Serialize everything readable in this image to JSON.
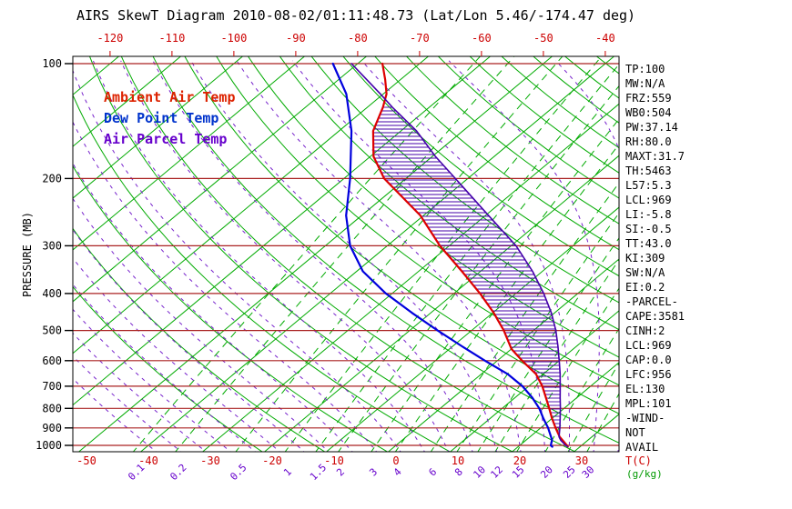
{
  "title": "AIRS SkewT Diagram 2010-08-02/01:11:48.73 (Lat/Lon 5.46/-174.47 deg)",
  "legend": {
    "items": [
      {
        "label": "Ambient Air Temp",
        "color": "#dd2200"
      },
      {
        "label": "Dew Point Temp",
        "color": "#0033cc"
      },
      {
        "label": "Air Parcel Temp",
        "color": "#6600cc"
      }
    ]
  },
  "stats": {
    "lines": [
      "TP:100",
      "MW:N/A",
      "FRZ:559",
      "WB0:504",
      "PW:37.14",
      "RH:80.0",
      "MAXT:31.7",
      "TH:5463",
      "L57:5.3",
      "LCL:969",
      "LI:-5.8",
      "SI:-0.5",
      "TT:43.0",
      "KI:309",
      "SW:N/A",
      "EI:0.2",
      "-PARCEL-",
      "CAPE:3581",
      "CINH:2",
      "LCL:969",
      "CAP:0.0",
      "LFC:956",
      "EL:130",
      "MPL:101",
      "-WIND-",
      "NOT",
      "AVAIL"
    ]
  },
  "axes": {
    "pressure_label": "PRESSURE (MB)",
    "pressure_ticks_mb": [
      100,
      200,
      300,
      400,
      500,
      600,
      700,
      800,
      900,
      1000
    ],
    "top_temp_ticks_c": [
      -120,
      -110,
      -100,
      -90,
      -80,
      -70,
      -60,
      -50,
      -40
    ],
    "bottom_temp_ticks_c": [
      -50,
      -40,
      -30,
      -20,
      -10,
      0,
      10,
      20,
      30
    ],
    "mixing_ratio_ticks_gkg": [
      0.1,
      0.2,
      0.5,
      1,
      1.5,
      2,
      3,
      4,
      6,
      8,
      10,
      12,
      15,
      20,
      25,
      30
    ],
    "temp_unit_label": "T(C)",
    "mixing_unit_label": "(g/kg)"
  },
  "colors": {
    "temp_labels": "#cc0000",
    "mixing_labels": "#6600cc",
    "mixing_unit": "#009900",
    "pressure_lines": "#aa2222",
    "axis": "#000000",
    "background": "#ffffff"
  },
  "chart_data": {
    "type": "line",
    "projection": "skew-t-log-p",
    "title": "AIRS SkewT Diagram 2010-08-02/01:11:48.73 (Lat/Lon 5.46/-174.47 deg)",
    "ylabel": "PRESSURE (MB)",
    "xlabel": "T(C)",
    "pressure_range_mb": [
      100,
      1050
    ],
    "temp_range_at_1000mb_c": [
      -50,
      36
    ],
    "grid_on": true,
    "legend_position": "top-left",
    "series": [
      {
        "name": "Ambient Air Temp",
        "color": "#dd0000",
        "width": 2.2,
        "points_p_t": [
          [
            1008,
            28.0
          ],
          [
            1000,
            27.6
          ],
          [
            969,
            25.9
          ],
          [
            950,
            24.8
          ],
          [
            900,
            22.4
          ],
          [
            850,
            20.0
          ],
          [
            800,
            17.6
          ],
          [
            750,
            15.0
          ],
          [
            700,
            12.2
          ],
          [
            650,
            8.8
          ],
          [
            600,
            4.0
          ],
          [
            559,
            0.0
          ],
          [
            500,
            -4.8
          ],
          [
            450,
            -9.8
          ],
          [
            400,
            -15.8
          ],
          [
            350,
            -23.0
          ],
          [
            300,
            -31.5
          ],
          [
            250,
            -40.5
          ],
          [
            200,
            -53.5
          ],
          [
            175,
            -59.5
          ],
          [
            150,
            -64.5
          ],
          [
            130,
            -67.5
          ],
          [
            120,
            -69.5
          ],
          [
            110,
            -72.5
          ],
          [
            100,
            -76.0
          ]
        ]
      },
      {
        "name": "Dew Point Temp",
        "color": "#0000dd",
        "width": 2.2,
        "points_p_t": [
          [
            1008,
            25.5
          ],
          [
            1000,
            25.0
          ],
          [
            969,
            24.2
          ],
          [
            950,
            23.4
          ],
          [
            900,
            21.2
          ],
          [
            850,
            18.6
          ],
          [
            800,
            16.0
          ],
          [
            750,
            12.8
          ],
          [
            700,
            9.0
          ],
          [
            650,
            4.2
          ],
          [
            600,
            -2.0
          ],
          [
            550,
            -8.5
          ],
          [
            500,
            -15.5
          ],
          [
            450,
            -23.0
          ],
          [
            400,
            -31.0
          ],
          [
            350,
            -39.0
          ],
          [
            300,
            -46.0
          ],
          [
            250,
            -52.5
          ],
          [
            200,
            -59.0
          ],
          [
            150,
            -68.0
          ],
          [
            120,
            -76.0
          ],
          [
            100,
            -84.0
          ]
        ]
      },
      {
        "name": "Air Parcel Temp",
        "color": "#4400aa",
        "width": 1.6,
        "points_p_t": [
          [
            1008,
            28.0
          ],
          [
            1000,
            27.4
          ],
          [
            969,
            25.6
          ],
          [
            950,
            24.7
          ],
          [
            900,
            23.1
          ],
          [
            850,
            21.3
          ],
          [
            800,
            19.4
          ],
          [
            750,
            17.3
          ],
          [
            700,
            15.1
          ],
          [
            650,
            12.7
          ],
          [
            600,
            10.0
          ],
          [
            550,
            7.0
          ],
          [
            500,
            3.6
          ],
          [
            450,
            -0.5
          ],
          [
            400,
            -5.5
          ],
          [
            350,
            -11.6
          ],
          [
            300,
            -19.2
          ],
          [
            250,
            -29.5
          ],
          [
            200,
            -42.0
          ],
          [
            175,
            -49.5
          ],
          [
            150,
            -57.5
          ],
          [
            130,
            -66.0
          ],
          [
            120,
            -70.5
          ],
          [
            110,
            -75.5
          ],
          [
            100,
            -81.0
          ]
        ]
      }
    ],
    "cape_hatch": {
      "between": [
        "Air Parcel Temp",
        "Ambient Air Temp"
      ],
      "from_mb": 956,
      "to_mb": 130,
      "color": "#4400aa"
    },
    "grid": {
      "isotherms_c": {
        "min": -120,
        "max": 40,
        "step": 10,
        "color": "#00aa00",
        "style": "solid"
      },
      "dry_adiabats_k": {
        "min": 250,
        "max": 450,
        "step": 10,
        "color": "#00aa00",
        "style": "solid"
      },
      "moist_adiabats_c_at_1000mb": {
        "min": -40,
        "max": 36,
        "step": 4,
        "color": "#7722cc",
        "style": "dashed"
      },
      "mixing_ratio_gkg": {
        "values": [
          0.1,
          0.2,
          0.5,
          1,
          1.5,
          2,
          3,
          4,
          6,
          8,
          10,
          12,
          15,
          20,
          25,
          30
        ],
        "color": "#00aa00",
        "style": "dashed"
      },
      "pressure_lines_mb": {
        "values": [
          100,
          200,
          300,
          400,
          500,
          600,
          700,
          800,
          900,
          1000
        ],
        "color": "#aa2222"
      }
    }
  }
}
